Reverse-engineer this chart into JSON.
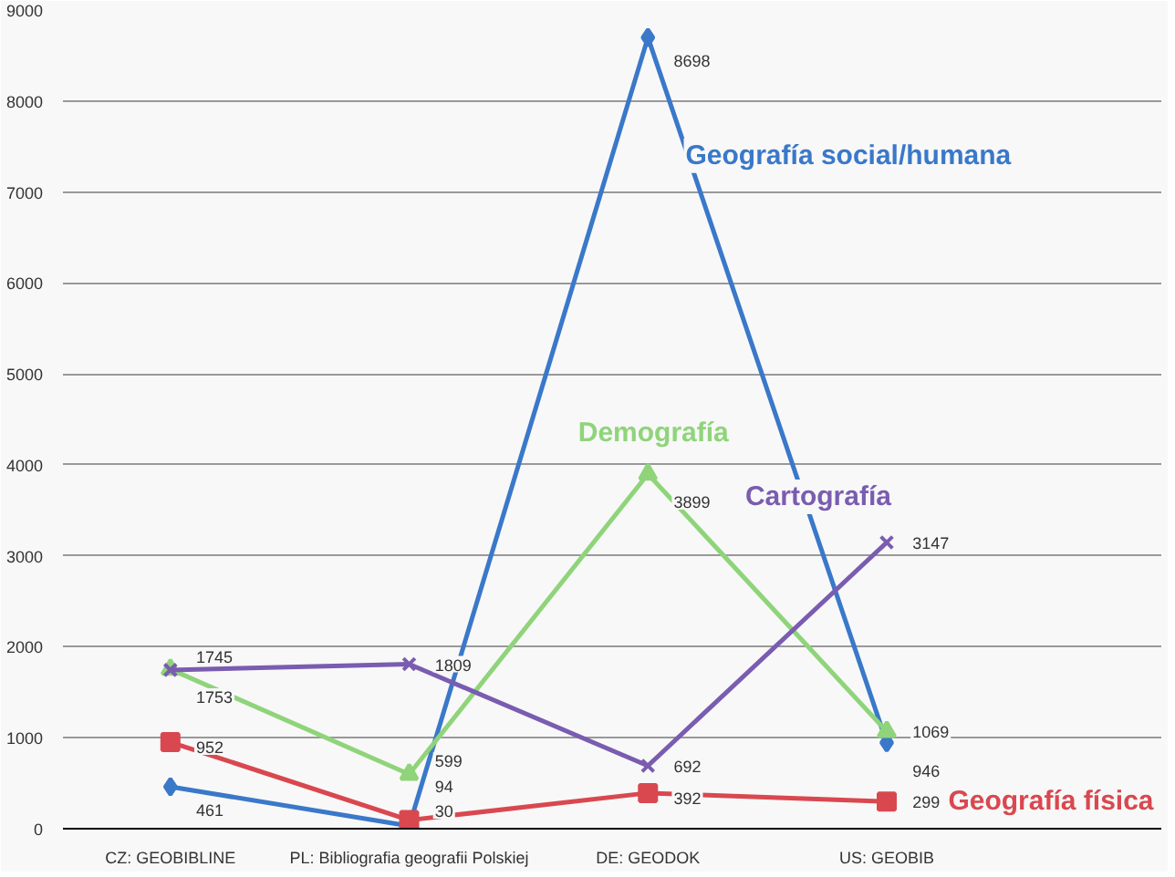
{
  "chart_data": {
    "type": "line",
    "categories": [
      "CZ: GEOBIBLINE",
      "PL: Bibliografia geografii Polskiej",
      "DE: GEODOK",
      "US: GEOBIB"
    ],
    "series": [
      {
        "name": "Geografía social/humana",
        "color": "#3a78c9",
        "marker": "diamond",
        "values": [
          461,
          30,
          8698,
          946
        ]
      },
      {
        "name": "Geografía física",
        "color": "#d9484f",
        "marker": "square",
        "values": [
          952,
          94,
          392,
          299
        ]
      },
      {
        "name": "Demografía",
        "color": "#8fd47a",
        "marker": "triangle",
        "values": [
          1753,
          599,
          3899,
          1069
        ]
      },
      {
        "name": "Cartografía",
        "color": "#7a5cb0",
        "marker": "cross",
        "values": [
          1745,
          1809,
          692,
          3147
        ]
      }
    ],
    "ylim": [
      0,
      9000
    ],
    "yticks": [
      0,
      1000,
      2000,
      3000,
      4000,
      5000,
      6000,
      7000,
      8000,
      9000
    ],
    "grid": "y",
    "legend": false,
    "data_labels": true
  }
}
